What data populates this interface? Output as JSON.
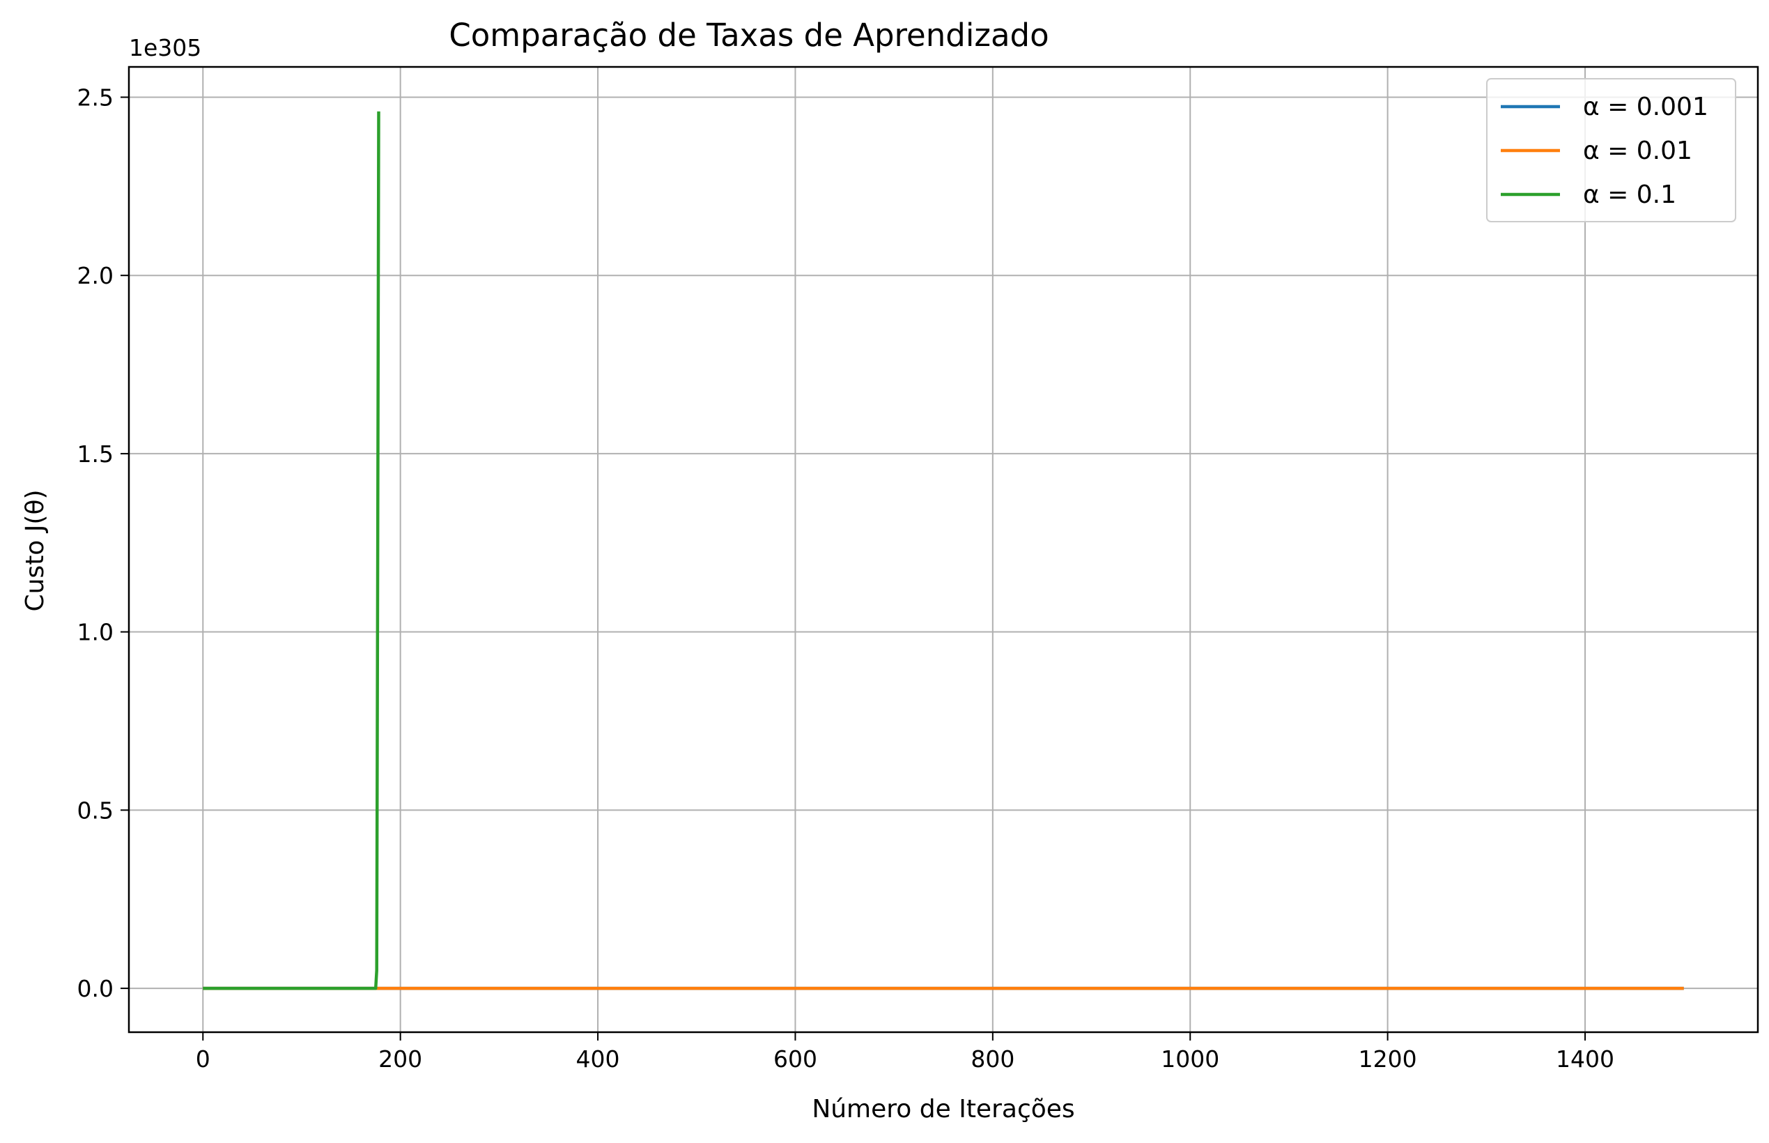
{
  "chart_data": {
    "type": "line",
    "title": "Comparação de Taxas de Aprendizado",
    "xlabel": "Número de Iterações",
    "ylabel": "Custo J(θ)",
    "y_offset_label": "1e305",
    "y_scale_exponent": 305,
    "xlim": [
      -75,
      1575
    ],
    "ylim": [
      -0.123,
      2.585
    ],
    "xticks": [
      0,
      200,
      400,
      600,
      800,
      1000,
      1200,
      1400
    ],
    "yticks": [
      0.0,
      0.5,
      1.0,
      1.5,
      2.0,
      2.5
    ],
    "xtick_labels": [
      "0",
      "200",
      "400",
      "600",
      "800",
      "1000",
      "1200",
      "1400"
    ],
    "ytick_labels": [
      "0.0",
      "0.5",
      "1.0",
      "1.5",
      "2.0",
      "2.5"
    ],
    "grid": true,
    "legend_position": "top-right",
    "series": [
      {
        "name": "α = 0.001",
        "color": "#1f77b4",
        "x": [
          0,
          1500
        ],
        "y": [
          0,
          0
        ]
      },
      {
        "name": "α = 0.01",
        "color": "#ff7f0e",
        "x": [
          0,
          1500
        ],
        "y": [
          0,
          0
        ]
      },
      {
        "name": "α = 0.1",
        "color": "#2ca02c",
        "x": [
          0,
          175,
          176,
          177,
          178
        ],
        "y": [
          0,
          0,
          0.05,
          1.2,
          2.46
        ]
      }
    ]
  }
}
